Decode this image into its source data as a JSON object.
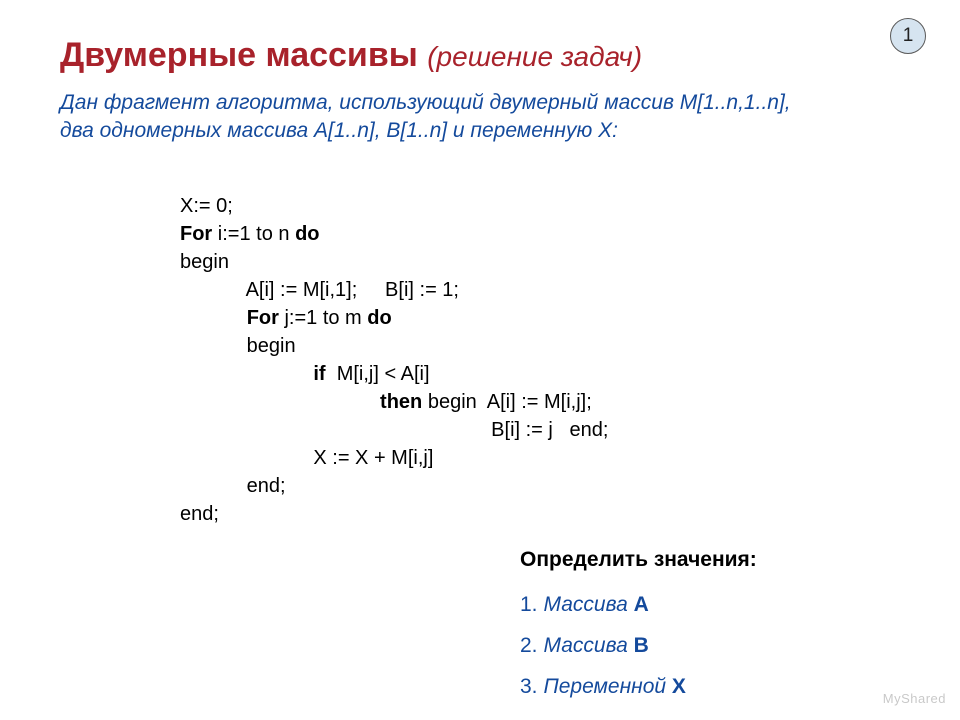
{
  "page_number": "1",
  "title_main": "Двумерные массивы",
  "title_sub": "(решение задач)",
  "intro_line1": "Дан фрагмент алгоритма, использующий двумерный массив М[1..n,1..n],",
  "intro_line2": "два одномерных массива А[1..n],  В[1..n]  и переменную Х:",
  "code": {
    "l1": "X:= 0;",
    "l2a": "For",
    "l2b": " i:=1 to n ",
    "l2c": "do",
    "l3": "begin",
    "l4": "            A[i] := M[i,1];     B[i] := 1;",
    "l5a": "            ",
    "l5b": "For",
    "l5c": " j:=1 to m ",
    "l5d": "do",
    "l6": "            begin",
    "l7a": "                        ",
    "l7b": "if",
    "l7c": "  M[i,j] < A[i]",
    "l8a": "                                    ",
    "l8b": "then",
    "l8c": " begin  A[i] := M[i,j];",
    "l9": "                                                        B[i] := j   end;",
    "l10": "                        X := X + M[i,j]",
    "l11": "            end;",
    "l12": "end;"
  },
  "tasks": {
    "heading": "Определить значения:",
    "items": [
      {
        "num": "1.",
        "text": "Массива ",
        "label": "А"
      },
      {
        "num": "2.",
        "text": "Массива  ",
        "label": "В"
      },
      {
        "num": "3.",
        "text": "Переменной ",
        "label": "Х"
      }
    ]
  },
  "watermark": "MyShared",
  "colors": {
    "title": "#a8222b",
    "accent": "#144a9c",
    "page_badge_bg": "#d6e4f0",
    "page_badge_border": "#5a5a5a"
  }
}
